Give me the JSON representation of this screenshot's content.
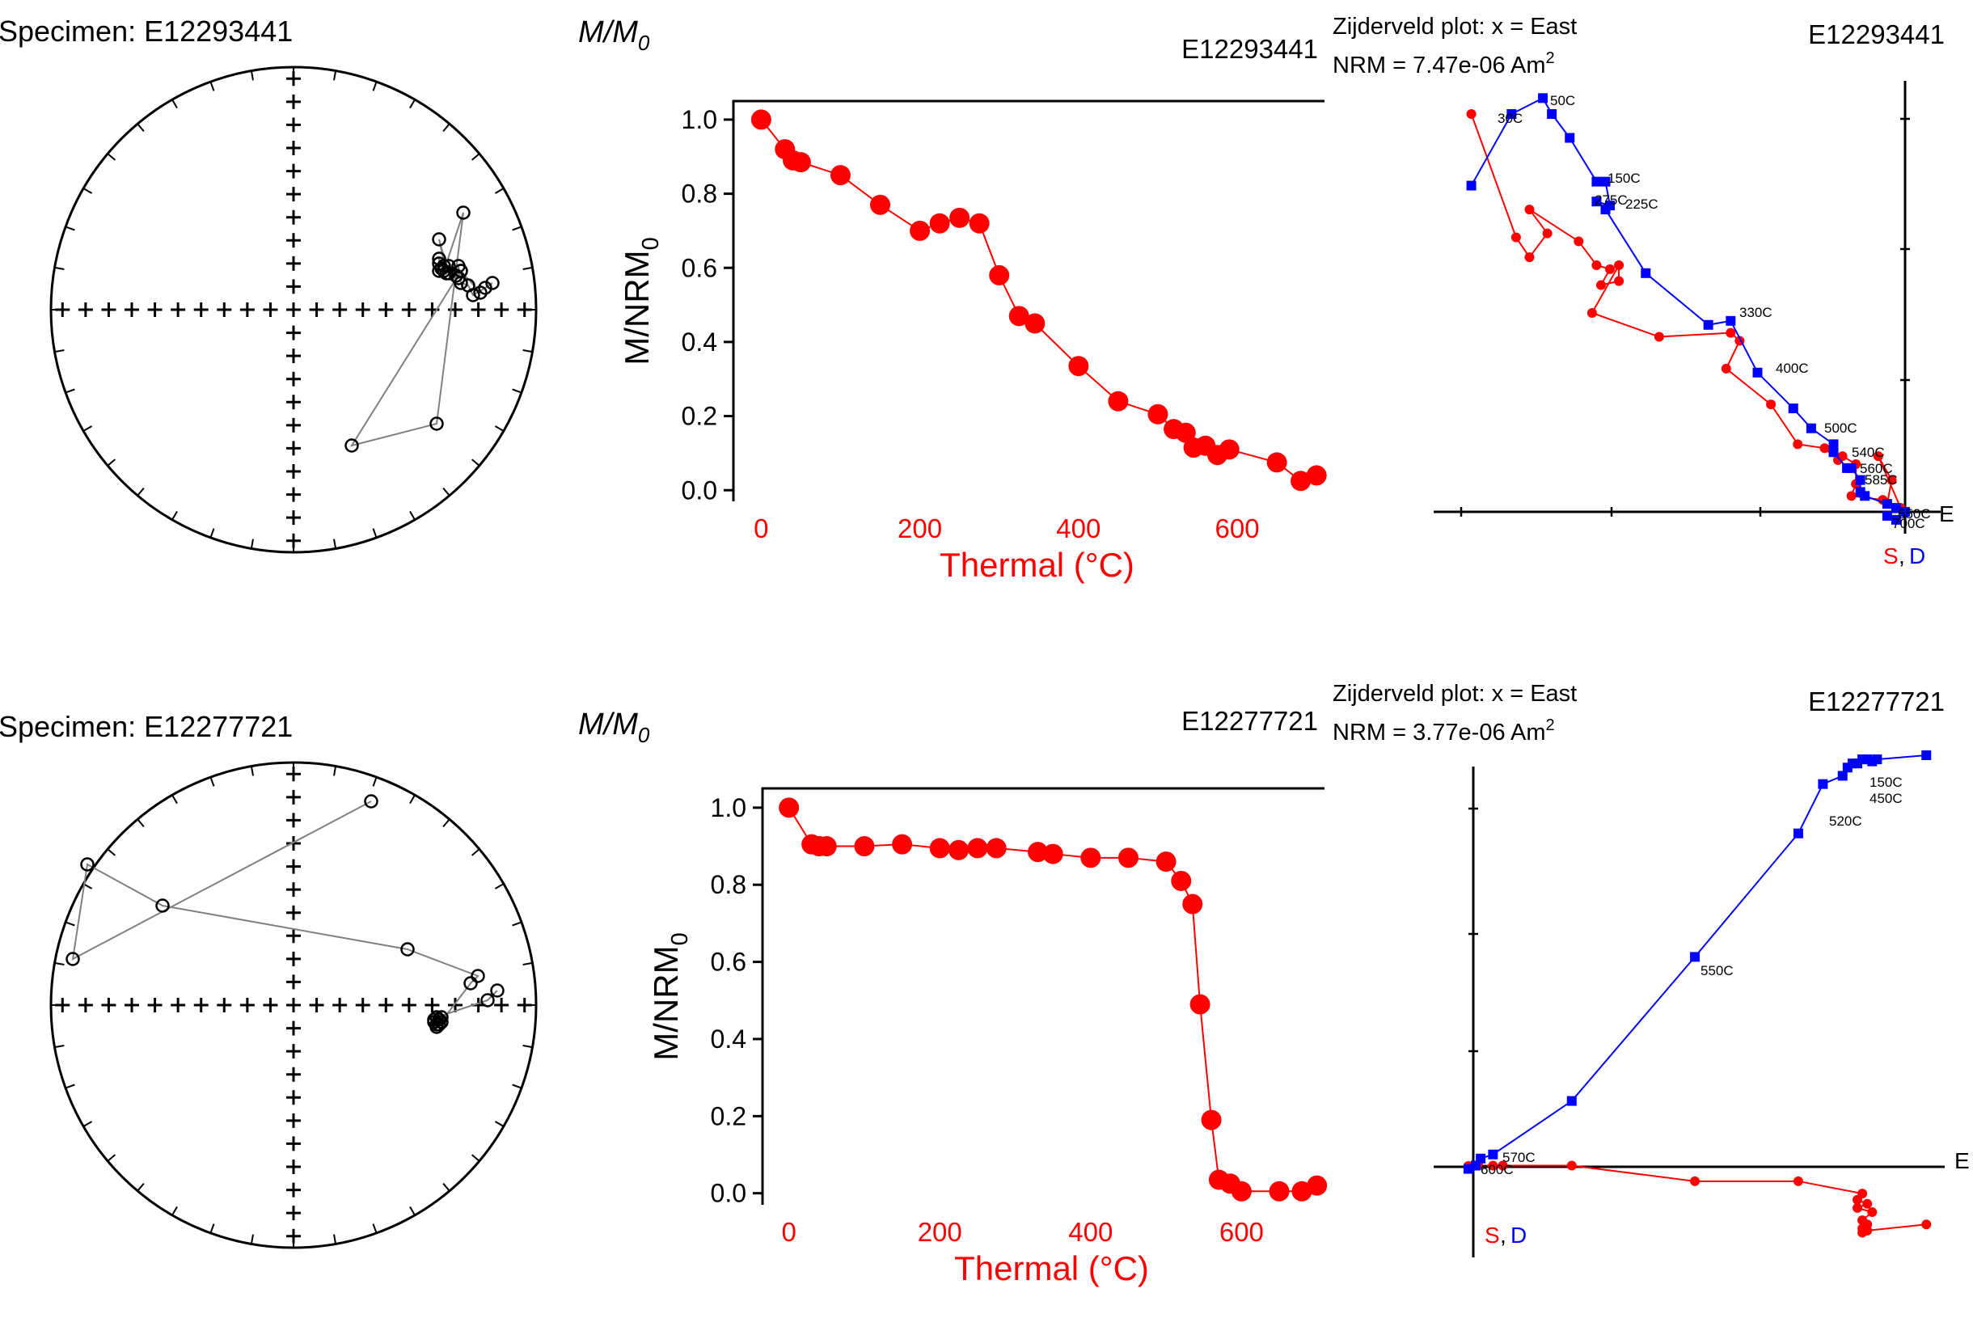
{
  "chart_data": [
    {
      "type": "scatter",
      "title": "Specimen: E12293441",
      "points": [
        [
          0.82,
          0.11
        ],
        [
          0.79,
          0.09
        ],
        [
          0.74,
          0.06
        ],
        [
          0.72,
          0.1
        ],
        [
          0.69,
          0.11
        ],
        [
          0.68,
          0.18
        ],
        [
          0.68,
          0.13
        ],
        [
          0.69,
          0.16
        ],
        [
          0.67,
          0.14
        ],
        [
          0.64,
          0.18
        ],
        [
          0.63,
          0.15
        ],
        [
          0.6,
          0.29
        ],
        [
          0.64,
          0.15
        ],
        [
          0.61,
          0.17
        ],
        [
          0.6,
          0.16
        ],
        [
          0.6,
          0.19
        ],
        [
          0.6,
          0.21
        ],
        [
          0.62,
          0.18
        ],
        [
          0.62,
          0.16
        ],
        [
          0.7,
          0.4
        ],
        [
          0.59,
          -0.47
        ],
        [
          0.24,
          -0.56
        ],
        [
          0.69,
          0.16
        ],
        [
          0.77,
          0.07
        ]
      ]
    },
    {
      "type": "line",
      "panel_label": "M/M0",
      "specimen": "E12293441",
      "xlabel": "Thermal (°C)",
      "ylabel": "M/NRM0",
      "xlim": [
        -35,
        710
      ],
      "ylim": [
        -0.03,
        1.05
      ],
      "xticks": [
        "0",
        "200",
        "400",
        "600"
      ],
      "yticks": [
        "0.0",
        "0.2",
        "0.4",
        "0.6",
        "0.8",
        "1.0"
      ],
      "x": [
        0,
        30,
        40,
        50,
        100,
        150,
        200,
        225,
        250,
        275,
        300,
        325,
        345,
        400,
        450,
        500,
        520,
        535,
        545,
        560,
        575,
        590,
        650,
        680,
        700
      ],
      "y": [
        1.0,
        0.92,
        0.89,
        0.885,
        0.85,
        0.77,
        0.7,
        0.72,
        0.735,
        0.72,
        0.58,
        0.47,
        0.45,
        0.335,
        0.24,
        0.205,
        0.165,
        0.155,
        0.115,
        0.12,
        0.095,
        0.11,
        0.075,
        0.025,
        0.04
      ]
    },
    {
      "type": "line",
      "title": "Zijderveld plot: x = East",
      "nrm_prefix": "NRM = 7.47e-06 Am",
      "nrm_exp": "2",
      "specimen": "E12293441",
      "axis_east": "E",
      "axis_s": "S",
      "axis_sep": ",",
      "axis_d": "D",
      "series": [
        {
          "name": "horizontal",
          "values": [
            [
              -0.97,
              1.0
            ],
            [
              -0.87,
              0.69
            ],
            [
              -0.84,
              0.64
            ],
            [
              -0.8,
              0.7
            ],
            [
              -0.84,
              0.76
            ],
            [
              -0.73,
              0.68
            ],
            [
              -0.69,
              0.62
            ],
            [
              -0.66,
              0.61
            ],
            [
              -0.68,
              0.57
            ],
            [
              -0.64,
              0.58
            ],
            [
              -0.64,
              0.62
            ],
            [
              -0.7,
              0.5
            ],
            [
              -0.55,
              0.44
            ],
            [
              -0.39,
              0.45
            ],
            [
              -0.37,
              0.43
            ],
            [
              -0.4,
              0.36
            ],
            [
              -0.3,
              0.27
            ],
            [
              -0.24,
              0.17
            ],
            [
              -0.18,
              0.16
            ],
            [
              -0.15,
              0.13
            ],
            [
              -0.14,
              0.14
            ],
            [
              -0.11,
              0.12
            ],
            [
              -0.11,
              0.07
            ],
            [
              -0.12,
              0.04
            ],
            [
              -0.05,
              0.03
            ],
            [
              -0.04,
              0.02
            ],
            [
              -0.03,
              0.08
            ],
            [
              -0.06,
              0.14
            ],
            [
              -0.01,
              0.01
            ],
            [
              0,
              0
            ]
          ]
        },
        {
          "name": "vertical",
          "values": [
            [
              -0.97,
              0.82
            ],
            [
              -0.88,
              1.0
            ],
            [
              -0.81,
              1.04
            ],
            [
              -0.79,
              1.0
            ],
            [
              -0.75,
              0.94
            ],
            [
              -0.69,
              0.83
            ],
            [
              -0.67,
              0.83
            ],
            [
              -0.66,
              0.77
            ],
            [
              -0.69,
              0.78
            ],
            [
              -0.67,
              0.76
            ],
            [
              -0.58,
              0.6
            ],
            [
              -0.44,
              0.47
            ],
            [
              -0.39,
              0.48
            ],
            [
              -0.33,
              0.35
            ],
            [
              -0.25,
              0.26
            ],
            [
              -0.21,
              0.21
            ],
            [
              -0.16,
              0.17
            ],
            [
              -0.16,
              0.15
            ],
            [
              -0.13,
              0.11
            ],
            [
              -0.12,
              0.11
            ],
            [
              -0.1,
              0.08
            ],
            [
              -0.1,
              0.05
            ],
            [
              -0.09,
              0.04
            ],
            [
              -0.04,
              0.02
            ],
            [
              -0.02,
              0.01
            ],
            [
              -0.04,
              -0.01
            ],
            [
              -0.02,
              -0.02
            ],
            [
              0,
              0
            ]
          ]
        }
      ],
      "labels": [
        "50C",
        "30C",
        "150C",
        "275C",
        "225C",
        "330C",
        "400C",
        "500C",
        "540C",
        "560C",
        "585C",
        "650C",
        "700C"
      ]
    },
    {
      "type": "scatter",
      "title": "Specimen: E12277721",
      "points": [
        [
          0.84,
          0.06
        ],
        [
          0.8,
          0.02
        ],
        [
          0.59,
          -0.05
        ],
        [
          0.58,
          -0.07
        ],
        [
          0.59,
          -0.08
        ],
        [
          0.6,
          -0.06
        ],
        [
          0.58,
          -0.06
        ],
        [
          0.59,
          -0.09
        ],
        [
          0.61,
          -0.07
        ],
        [
          0.61,
          -0.05
        ],
        [
          0.6,
          -0.08
        ],
        [
          0.73,
          0.09
        ],
        [
          0.76,
          0.12
        ],
        [
          0.47,
          0.23
        ],
        [
          -0.54,
          0.41
        ],
        [
          -0.85,
          0.58
        ],
        [
          -0.91,
          0.19
        ],
        [
          0.32,
          0.84
        ]
      ]
    },
    {
      "type": "line",
      "panel_label": "M/M0",
      "specimen": "E12277721",
      "xlabel": "Thermal (°C)",
      "ylabel": "M/NRM0",
      "xlim": [
        -35,
        710
      ],
      "ylim": [
        -0.03,
        1.05
      ],
      "xticks": [
        "0",
        "200",
        "400",
        "600"
      ],
      "yticks": [
        "0.0",
        "0.2",
        "0.4",
        "0.6",
        "0.8",
        "1.0"
      ],
      "x": [
        0,
        30,
        40,
        50,
        100,
        150,
        200,
        225,
        250,
        275,
        330,
        350,
        400,
        450,
        500,
        520,
        535,
        545,
        560,
        570,
        585,
        600,
        650,
        680,
        700
      ],
      "y": [
        1.0,
        0.905,
        0.9,
        0.9,
        0.9,
        0.905,
        0.895,
        0.89,
        0.895,
        0.895,
        0.885,
        0.88,
        0.87,
        0.87,
        0.86,
        0.81,
        0.75,
        0.49,
        0.19,
        0.035,
        0.025,
        0.005,
        0.005,
        0.005,
        0.02
      ]
    },
    {
      "type": "line",
      "title": "Zijderveld plot: x = East",
      "nrm_prefix": "NRM = 3.77e-06 Am",
      "nrm_exp": "2",
      "specimen": "E12277721",
      "axis_east": "E",
      "axis_s": "S",
      "axis_sep": ",",
      "axis_d": "D",
      "series": [
        {
          "name": "horizontal",
          "values": [
            [
              -0.01,
              0.002
            ],
            [
              0.01,
              0.003
            ],
            [
              0.04,
              0.003
            ],
            [
              0.06,
              0.003
            ],
            [
              0.2,
              0.003
            ],
            [
              0.45,
              -0.035
            ],
            [
              0.66,
              -0.035
            ],
            [
              0.79,
              -0.065
            ],
            [
              0.78,
              -0.08
            ],
            [
              0.8,
              -0.09
            ],
            [
              0.78,
              -0.1
            ],
            [
              0.81,
              -0.11
            ],
            [
              0.79,
              -0.13
            ],
            [
              0.79,
              -0.15
            ],
            [
              0.79,
              -0.16
            ],
            [
              0.8,
              -0.14
            ],
            [
              0.8,
              -0.155
            ],
            [
              0.92,
              -0.14
            ]
          ]
        },
        {
          "name": "vertical",
          "values": [
            [
              -0.01,
              -0.005
            ],
            [
              0.005,
              0.003
            ],
            [
              0.015,
              0.02
            ],
            [
              0.04,
              0.03
            ],
            [
              0.2,
              0.16
            ],
            [
              0.45,
              0.51
            ],
            [
              0.66,
              0.81
            ],
            [
              0.71,
              0.93
            ],
            [
              0.75,
              0.95
            ],
            [
              0.76,
              0.97
            ],
            [
              0.77,
              0.98
            ],
            [
              0.78,
              0.98
            ],
            [
              0.79,
              0.99
            ],
            [
              0.8,
              0.99
            ],
            [
              0.81,
              0.985
            ],
            [
              0.82,
              0.99
            ],
            [
              0.92,
              1.0
            ]
          ]
        }
      ],
      "labels": [
        "150C",
        "450C",
        "520C",
        "550C",
        "570C",
        "600C"
      ]
    }
  ]
}
